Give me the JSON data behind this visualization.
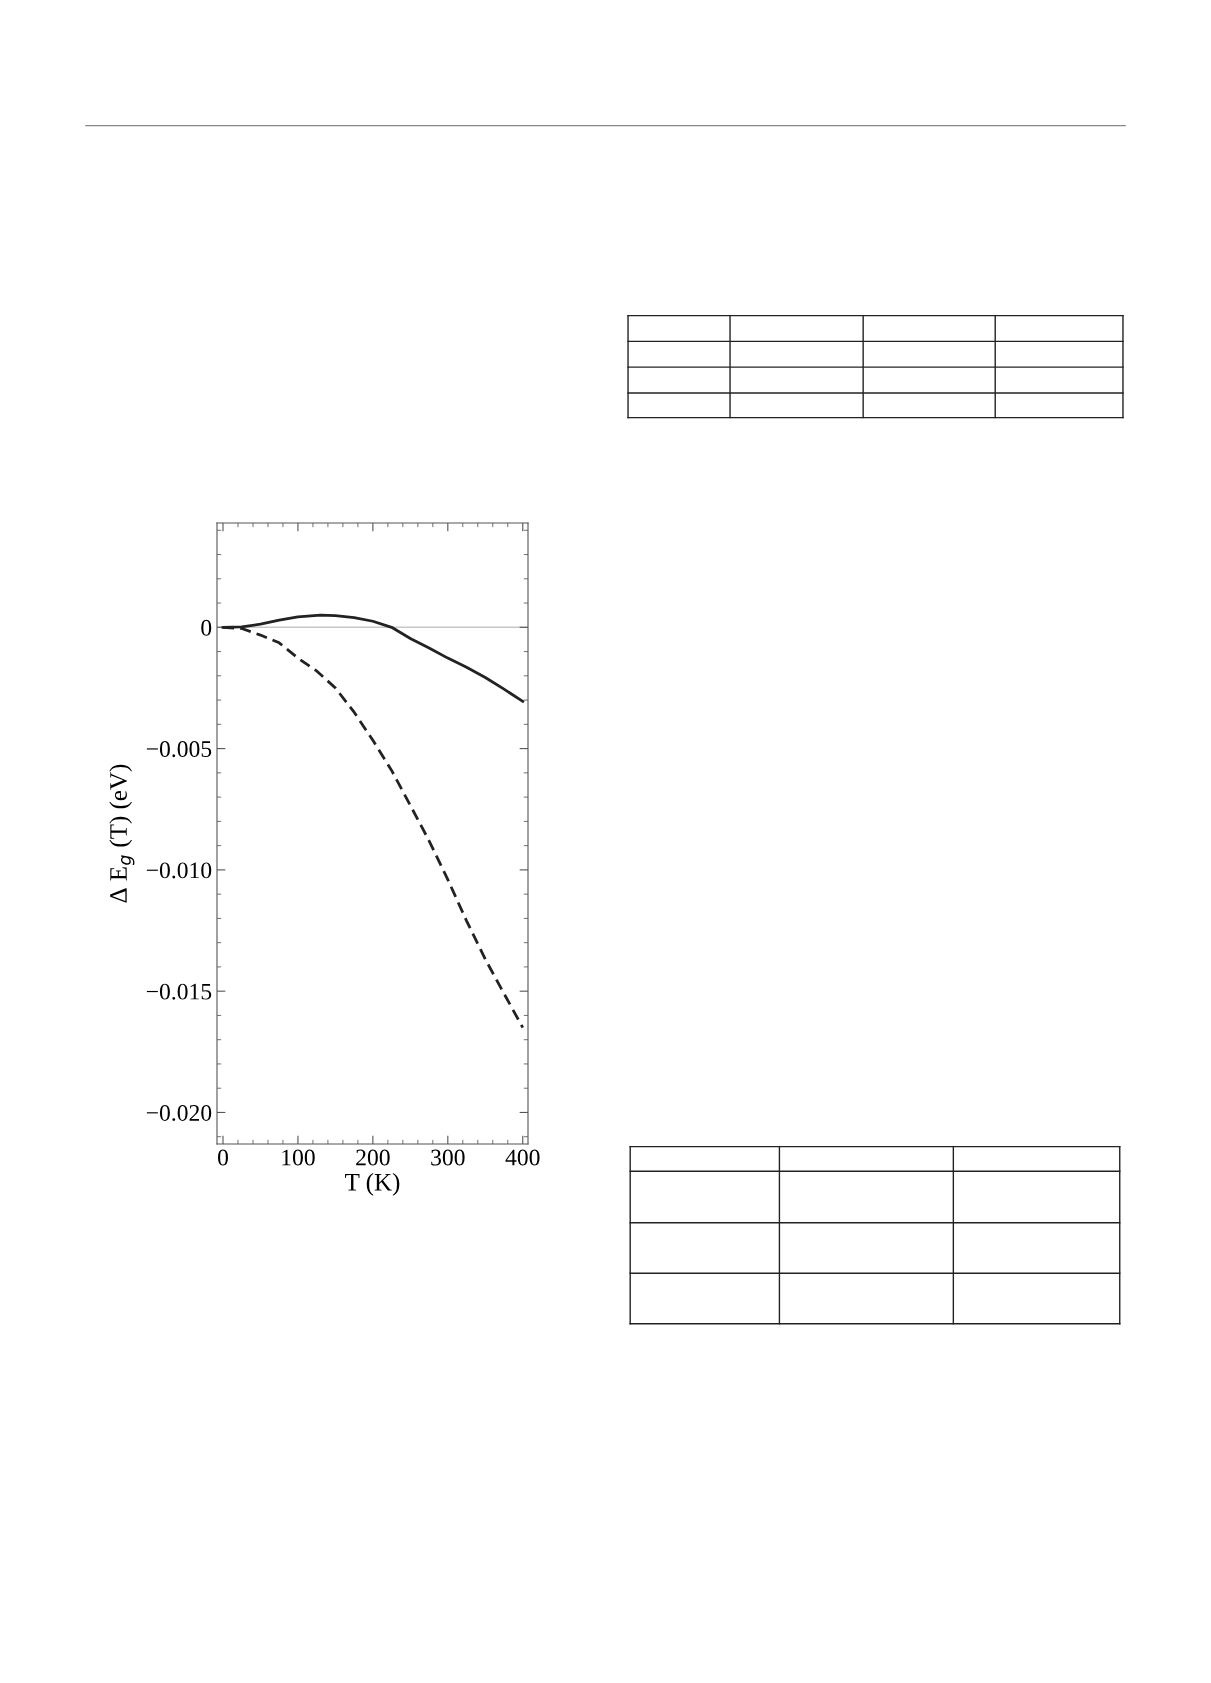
{
  "chart_data": {
    "type": "line",
    "xlabel": "T (K)",
    "ylabel": "Δ E$_{g}$ (T) (eV)",
    "xlim": [
      -8,
      407
    ],
    "ylim": [
      -0.0213,
      0.0043
    ],
    "xticks": [
      0,
      100,
      200,
      300,
      400
    ],
    "yticks": [
      {
        "value": -0.02,
        "label": "−0.020"
      },
      {
        "value": -0.015,
        "label": "−0.015"
      },
      {
        "value": -0.01,
        "label": "−0.010"
      },
      {
        "value": -0.005,
        "label": "−0.005"
      },
      0
    ],
    "grid": false,
    "legend": false,
    "ref_lines": [
      {
        "axis": "y",
        "value": 0,
        "color": "#c8c8c8",
        "line_style": "solid"
      }
    ],
    "series": [
      {
        "color": "#222222",
        "line_style": "solid",
        "x": [
          0,
          25,
          50,
          75,
          100,
          130,
          150,
          175,
          200,
          225,
          250,
          275,
          300,
          325,
          350,
          375,
          400
        ],
        "values": [
          0,
          2e-05,
          0.00013,
          0.0003,
          0.00043,
          0.0005,
          0.00048,
          0.0004,
          0.00025,
          0.0,
          -0.00046,
          -0.00085,
          -0.00127,
          -0.00165,
          -0.00207,
          -0.00255,
          -0.00305
        ]
      },
      {
        "color": "#222222",
        "line_style": "dashed",
        "x": [
          0,
          25,
          50,
          75,
          100,
          125,
          150,
          175,
          200,
          225,
          250,
          275,
          300,
          325,
          350,
          375,
          400
        ],
        "values": [
          0,
          -5e-05,
          -0.00032,
          -0.00064,
          -0.00127,
          -0.0018,
          -0.0025,
          -0.0035,
          -0.00466,
          -0.0059,
          -0.00734,
          -0.0088,
          -0.0104,
          -0.0121,
          -0.01368,
          -0.0151,
          -0.0165
        ]
      }
    ]
  }
}
